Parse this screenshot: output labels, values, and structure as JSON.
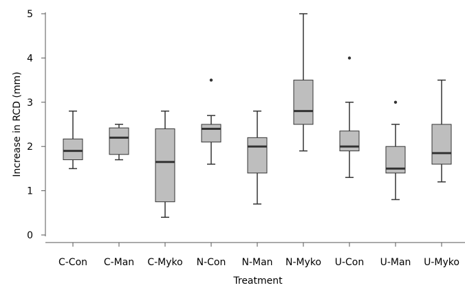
{
  "chart_data": {
    "type": "boxplot",
    "xlabel": "Treatment",
    "ylabel": "Increase in RCD (mm)",
    "ylim": [
      0,
      5
    ],
    "yticks": [
      0,
      1,
      2,
      3,
      4,
      5
    ],
    "grid": false,
    "categories": [
      "C-Con",
      "C-Man",
      "C-Myko",
      "N-Con",
      "N-Man",
      "N-Myko",
      "U-Con",
      "U-Man",
      "U-Myko"
    ],
    "boxes": [
      {
        "category": "C-Con",
        "whisker_low": 1.5,
        "q1": 1.7,
        "median": 1.9,
        "q3": 2.17,
        "whisker_high": 2.8,
        "outliers": []
      },
      {
        "category": "C-Man",
        "whisker_low": 1.7,
        "q1": 1.82,
        "median": 2.2,
        "q3": 2.42,
        "whisker_high": 2.5,
        "outliers": []
      },
      {
        "category": "C-Myko",
        "whisker_low": 0.4,
        "q1": 0.75,
        "median": 1.65,
        "q3": 2.4,
        "whisker_high": 2.8,
        "outliers": []
      },
      {
        "category": "N-Con",
        "whisker_low": 1.6,
        "q1": 2.1,
        "median": 2.4,
        "q3": 2.5,
        "whisker_high": 2.7,
        "outliers": [
          3.5
        ]
      },
      {
        "category": "N-Man",
        "whisker_low": 0.7,
        "q1": 1.4,
        "median": 2.0,
        "q3": 2.2,
        "whisker_high": 2.8,
        "outliers": []
      },
      {
        "category": "N-Myko",
        "whisker_low": 1.9,
        "q1": 2.5,
        "median": 2.8,
        "q3": 3.5,
        "whisker_high": 5.0,
        "outliers": []
      },
      {
        "category": "U-Con",
        "whisker_low": 1.3,
        "q1": 1.9,
        "median": 2.0,
        "q3": 2.35,
        "whisker_high": 3.0,
        "outliers": [
          4.0
        ]
      },
      {
        "category": "U-Man",
        "whisker_low": 0.8,
        "q1": 1.4,
        "median": 1.5,
        "q3": 2.0,
        "whisker_high": 2.5,
        "outliers": [
          3.0
        ]
      },
      {
        "category": "U-Myko",
        "whisker_low": 1.2,
        "q1": 1.6,
        "median": 1.85,
        "q3": 2.5,
        "whisker_high": 3.5,
        "outliers": []
      }
    ],
    "colors": {
      "box_fill": "#bebebe",
      "stroke": "#333333",
      "axis": "#555555",
      "outlier": "#333333"
    }
  }
}
